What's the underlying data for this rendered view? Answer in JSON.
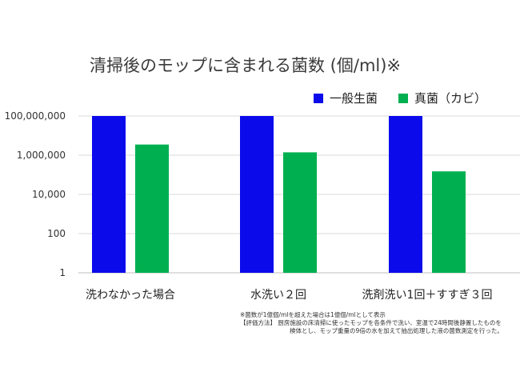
{
  "chart_data": {
    "type": "bar",
    "title": "清掃後のモップに含まれる菌数 (個/ml)※",
    "xlabel": "",
    "ylabel": "",
    "yscale": "log",
    "ylim": [
      1,
      100000000
    ],
    "yticks": [
      1,
      100,
      10000,
      1000000,
      100000000
    ],
    "ytick_labels": [
      "1",
      "100",
      "10,000",
      "1,000,000",
      "100,000,000"
    ],
    "categories": [
      "洗わなかった場合",
      "水洗い２回",
      "洗剤洗い1回＋すすぎ３回"
    ],
    "series": [
      {
        "name": "一般生菌",
        "color": "#0a0aeb",
        "values": [
          100000000,
          100000000,
          100000000
        ]
      },
      {
        "name": "真菌（カビ）",
        "color": "#00b050",
        "values": [
          3500000,
          1400000,
          150000
        ]
      }
    ],
    "grid": true,
    "legend_position": "top-right",
    "notes": [
      "※菌数が1億個/mlを超えた場合は1億個/mlとして表示",
      "【評価方法】 厨房施設の床清掃に使ったモップを各条件で洗い、室温で24時間後静置したものを",
      "検体とし、モップ重量の9倍の水を加えて抽出処理した液の菌数測定を行った。"
    ]
  }
}
